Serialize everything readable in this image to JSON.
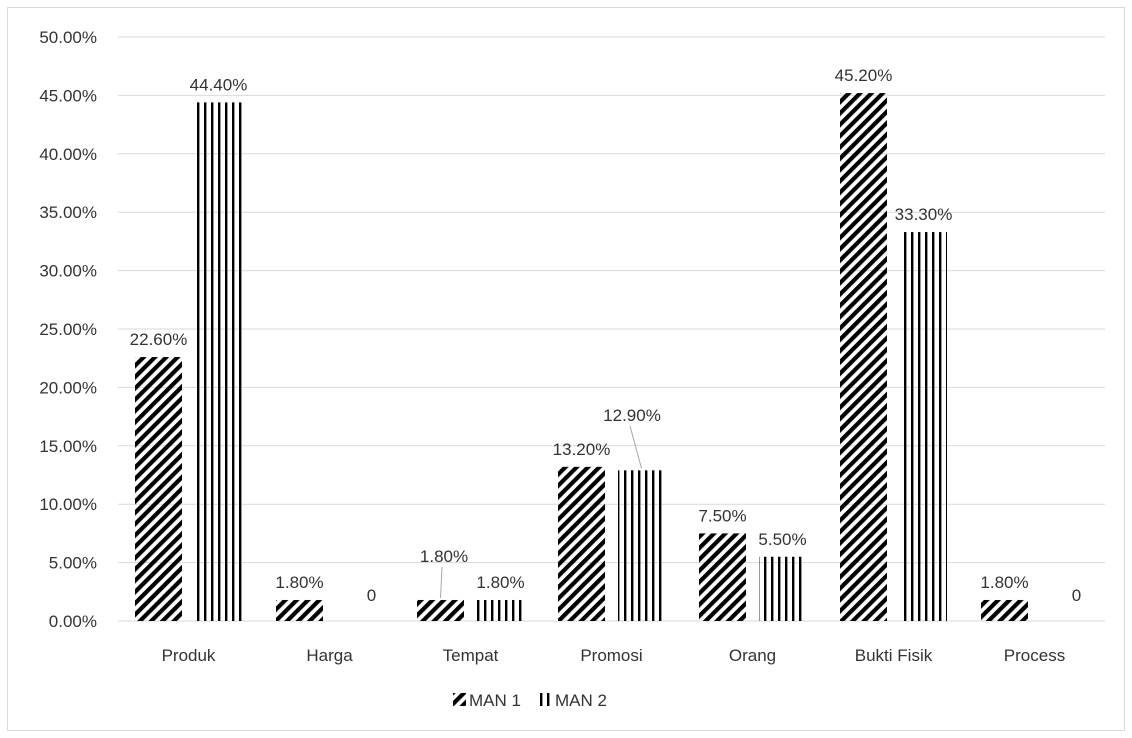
{
  "chart_data": {
    "type": "bar",
    "categories": [
      "Produk",
      "Harga",
      "Tempat",
      "Promosi",
      "Orang",
      "Bukti Fisik",
      "Process"
    ],
    "series": [
      {
        "name": "MAN 1",
        "pattern": "diagonal-stripes",
        "values": [
          0.226,
          0.018,
          0.018,
          0.132,
          0.075,
          0.452,
          0.018
        ],
        "labels": [
          "22.60%",
          "1.80%",
          "1.80%",
          "13.20%",
          "7.50%",
          "45.20%",
          "1.80%"
        ]
      },
      {
        "name": "MAN 2",
        "pattern": "vertical-stripes",
        "values": [
          0.444,
          0,
          0.018,
          0.129,
          0.055,
          0.333,
          0
        ],
        "labels": [
          "44.40%",
          "0",
          "1.80%",
          "12.90%",
          "5.50%",
          "33.30%",
          "0"
        ]
      }
    ],
    "y_ticks": [
      "0.00%",
      "5.00%",
      "10.00%",
      "15.00%",
      "20.00%",
      "25.00%",
      "30.00%",
      "35.00%",
      "40.00%",
      "45.00%",
      "50.00%"
    ],
    "ylim": [
      0,
      0.5
    ],
    "grid": true,
    "legend_position": "bottom",
    "colors": {
      "bar_ink": "#000000",
      "grid": "#d9d9d9",
      "text": "#333333",
      "frame": "#d9d9d9"
    }
  }
}
